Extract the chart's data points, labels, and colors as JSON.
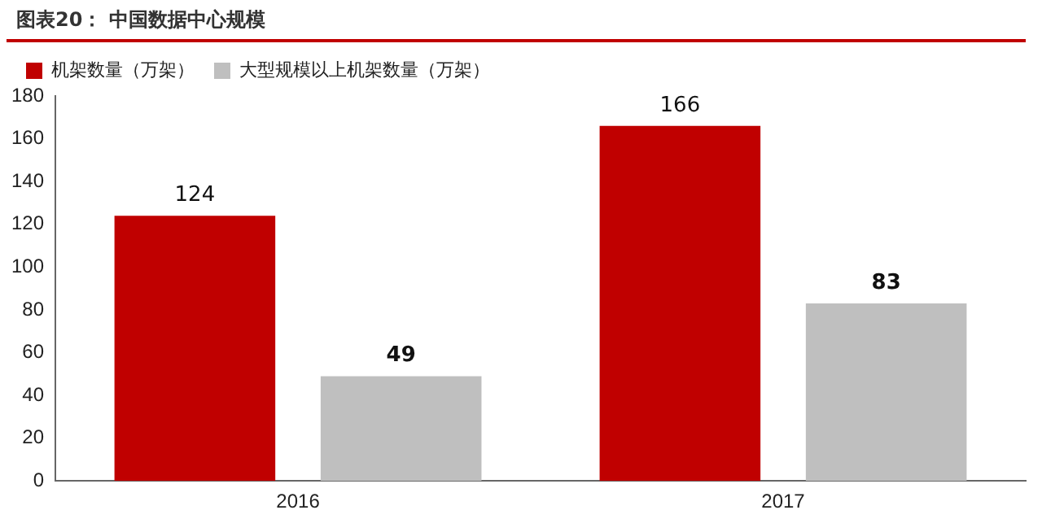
{
  "chart_data": {
    "type": "bar",
    "title": "图表20：  中国数据中心规模",
    "categories": [
      "2016",
      "2017"
    ],
    "series": [
      {
        "name": "机架数量（万架）",
        "color": "#c00000",
        "values": [
          124,
          166
        ]
      },
      {
        "name": "大型规模以上机架数量（万架）",
        "color": "#bfbfbf",
        "values": [
          49,
          83
        ]
      }
    ],
    "ylim": [
      0,
      180
    ],
    "yticks": [
      0,
      20,
      40,
      60,
      80,
      100,
      120,
      140,
      160,
      180
    ],
    "grid": false,
    "legend": "top left",
    "data_labels": true
  }
}
